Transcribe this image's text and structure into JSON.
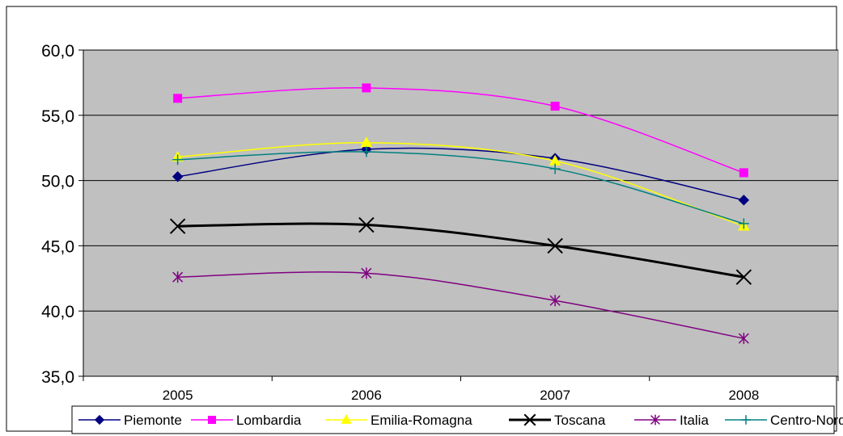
{
  "chart_data": {
    "type": "line",
    "title": "",
    "xlabel": "",
    "ylabel": "",
    "categories": [
      "2005",
      "2006",
      "2007",
      "2008"
    ],
    "ylim": [
      35,
      60
    ],
    "y_ticks": [
      "35,0",
      "40,0",
      "45,0",
      "50,0",
      "55,0",
      "60,0"
    ],
    "grid": "horizontal",
    "plot_background": "#c0c0c0",
    "legend_position": "bottom",
    "series": [
      {
        "name": "Piemonte",
        "values": [
          50.3,
          52.4,
          51.7,
          48.5
        ],
        "color": "#000080",
        "marker": "diamond",
        "stroke_width": 1.5
      },
      {
        "name": "Lombardia",
        "values": [
          56.3,
          57.1,
          55.7,
          50.6
        ],
        "color": "#ff00ff",
        "marker": "square",
        "stroke_width": 1.5
      },
      {
        "name": "Emilia-Romagna",
        "values": [
          51.8,
          52.9,
          51.5,
          46.5
        ],
        "color": "#ffff00",
        "marker": "triangle",
        "stroke_width": 1.5
      },
      {
        "name": "Toscana",
        "values": [
          46.5,
          46.6,
          45.0,
          42.6
        ],
        "color": "#000000",
        "marker": "x",
        "stroke_width": 3
      },
      {
        "name": "Italia",
        "values": [
          42.6,
          42.9,
          40.8,
          37.9
        ],
        "color": "#800080",
        "marker": "star",
        "stroke_width": 1.5
      },
      {
        "name": "Centro-Nord",
        "values": [
          51.6,
          52.2,
          50.9,
          46.7
        ],
        "color": "#008080",
        "marker": "plus",
        "stroke_width": 1.5
      }
    ]
  }
}
